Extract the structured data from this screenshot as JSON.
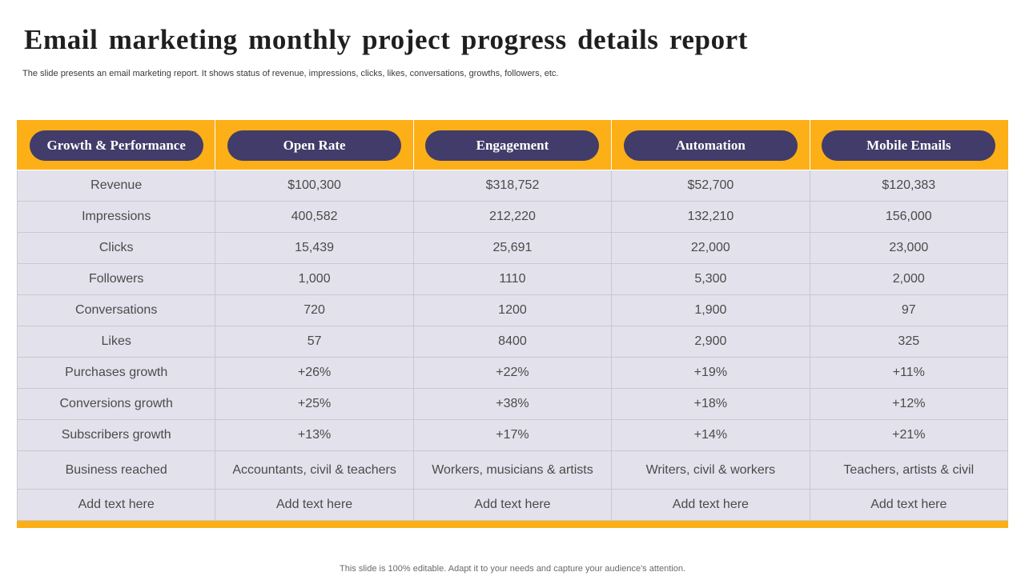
{
  "slide": {
    "title": "Email marketing monthly project progress details report",
    "subtitle": "The slide presents an email marketing report. It shows status of revenue, impressions, clicks, likes, conversations, growths, followers, etc.",
    "footer": "This slide is 100% editable. Adapt it to your needs and capture your audience's attention."
  },
  "colors": {
    "header_band": "#fdaf17",
    "pill": "#413c69",
    "cell_bg": "#e3e2ec"
  },
  "table": {
    "headers": [
      "Growth & Performance",
      "Open Rate",
      "Engagement",
      "Automation",
      "Mobile Emails"
    ],
    "rows": [
      [
        "Revenue",
        "$100,300",
        "$318,752",
        "$52,700",
        "$120,383"
      ],
      [
        "Impressions",
        "400,582",
        "212,220",
        "132,210",
        "156,000"
      ],
      [
        "Clicks",
        "15,439",
        "25,691",
        "22,000",
        "23,000"
      ],
      [
        "Followers",
        "1,000",
        "1110",
        "5,300",
        "2,000"
      ],
      [
        "Conversations",
        "720",
        "1200",
        "1,900",
        "97"
      ],
      [
        "Likes",
        "57",
        "8400",
        "2,900",
        "325"
      ],
      [
        "Purchases growth",
        "+26%",
        "+22%",
        "+19%",
        "+11%"
      ],
      [
        "Conversions growth",
        "+25%",
        "+38%",
        "+18%",
        "+12%"
      ],
      [
        "Subscribers growth",
        "+13%",
        "+17%",
        "+14%",
        "+21%"
      ],
      [
        "Business reached",
        "Accountants,  civil & teachers",
        "Workers, musicians & artists",
        "Writers, civil & workers",
        "Teachers, artists & civil"
      ],
      [
        "Add text here",
        "Add text here",
        "Add text here",
        "Add text here",
        "Add text here"
      ]
    ]
  }
}
